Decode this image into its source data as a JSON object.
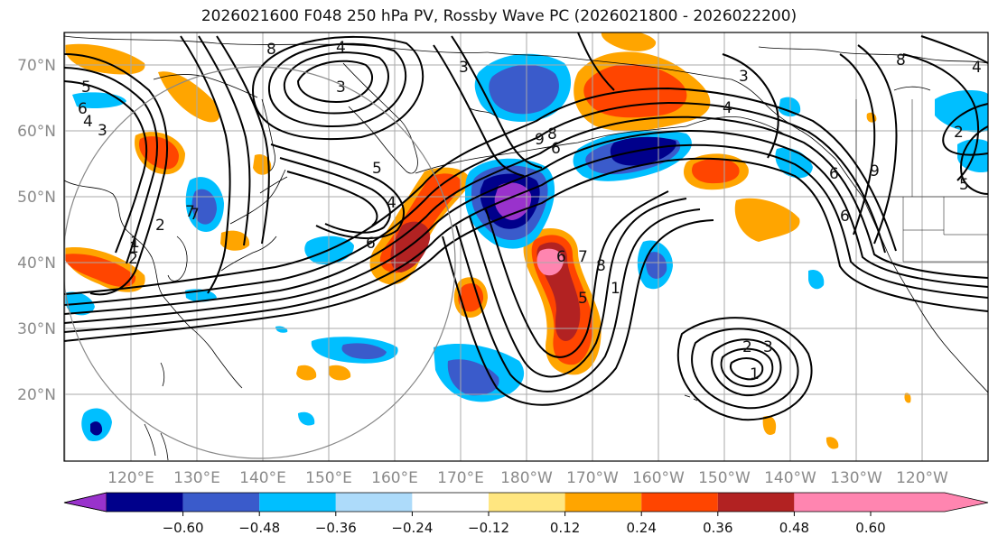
{
  "title": "2026021600 F048 250 hPa PV, Rossby Wave PC (2026021800 - 2026022200)",
  "lat_labels": [
    "70°N",
    "60°N",
    "50°N",
    "40°N",
    "30°N",
    "20°N"
  ],
  "lon_labels": [
    "120°E",
    "130°E",
    "140°E",
    "150°E",
    "160°E",
    "170°E",
    "180°W",
    "170°W",
    "160°W",
    "150°W",
    "140°W",
    "130°W",
    "120°W"
  ],
  "colorbar": {
    "ticks": [
      "−0.60",
      "−0.48",
      "−0.36",
      "−0.24",
      "−0.12",
      "0.12",
      "0.24",
      "0.36",
      "0.48",
      "0.60"
    ],
    "colors": [
      "#9932CC",
      "#00008B",
      "#3A5BCB",
      "#00BFFF",
      "#ADDBFA",
      "#FFFFFF",
      "#FFE680",
      "#FFA500",
      "#FF4500",
      "#B22222",
      "#FF85B0"
    ],
    "extend": "both"
  },
  "colors": {
    "contour": "#000000",
    "grid": "#aaaaaa",
    "circle": "#888888"
  },
  "contour_labels": [
    "4",
    "3",
    "5",
    "6",
    "3",
    "4",
    "5",
    "6",
    "7",
    "2",
    "1",
    "6",
    "8",
    "9",
    "6",
    "4",
    "7",
    "8",
    "5",
    "1",
    "2",
    "3",
    "6",
    "8",
    "9",
    "6",
    "5",
    "4",
    "8",
    "4",
    "3",
    "1",
    "2",
    "7",
    "1",
    "2",
    "3"
  ]
}
